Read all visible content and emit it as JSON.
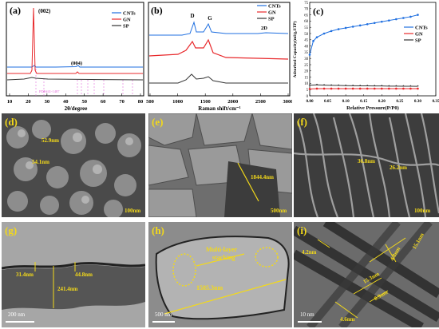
{
  "chart_data": [
    {
      "panel": "(a)",
      "type": "line",
      "xlabel": "2θ/degree",
      "ylabel": "",
      "xlim": [
        10,
        80
      ],
      "xticks": [
        10,
        20,
        30,
        40,
        50,
        60,
        70,
        80
      ],
      "legend_placement": "top-right",
      "series": [
        {
          "name": "CNTs",
          "color": "#1f6fe0"
        },
        {
          "name": "GN",
          "color": "#e8292c"
        },
        {
          "name": "SP",
          "color": "#333333"
        }
      ],
      "annotations": [
        "(002)",
        "(004)",
        "PDF#41-1487"
      ]
    },
    {
      "panel": "(b)",
      "type": "line",
      "xlabel": "Raman shift/cm⁻¹",
      "xlim": [
        500,
        3000
      ],
      "xticks": [
        500,
        1000,
        1500,
        2000,
        2500,
        3000
      ],
      "legend_placement": "top-right",
      "series": [
        {
          "name": "CNTs",
          "color": "#1f6fe0"
        },
        {
          "name": "GN",
          "color": "#e8292c"
        },
        {
          "name": "SP",
          "color": "#333333"
        }
      ],
      "annotations": [
        "D",
        "G",
        "2D"
      ]
    },
    {
      "panel": "(c)",
      "type": "line",
      "xlabel": "Relative Pressure(P/P0)",
      "ylabel": "Adsorbed Capacity(ml/g,STP)",
      "xlim": [
        0.0,
        0.35
      ],
      "ylim": [
        0,
        75
      ],
      "xticks": [
        "0.00",
        "0.05",
        "0.10",
        "0.15",
        "0.20",
        "0.25",
        "0.30",
        "0.35"
      ],
      "yticks": [
        0,
        5,
        10,
        15,
        20,
        25,
        30,
        35,
        40,
        45,
        50,
        55,
        60,
        65,
        70,
        75
      ],
      "legend_placement": "top-right",
      "series": [
        {
          "name": "CNTs",
          "color": "#1f6fe0",
          "x": [
            0.0,
            0.01,
            0.02,
            0.04,
            0.06,
            0.08,
            0.1,
            0.12,
            0.14,
            0.16,
            0.18,
            0.2,
            0.22,
            0.24,
            0.26,
            0.28,
            0.3
          ],
          "y": [
            33,
            44,
            47,
            50,
            52,
            53.5,
            54.5,
            55.5,
            56.5,
            57.5,
            58.5,
            59.5,
            60.5,
            61.5,
            62.5,
            63.5,
            65
          ]
        },
        {
          "name": "GN",
          "color": "#e8292c",
          "x": [
            0.0,
            0.02,
            0.04,
            0.06,
            0.08,
            0.1,
            0.12,
            0.14,
            0.16,
            0.18,
            0.2,
            0.22,
            0.24,
            0.26,
            0.28,
            0.3
          ],
          "y": [
            5.5,
            5.8,
            5.8,
            5.8,
            5.8,
            5.8,
            5.8,
            5.8,
            5.8,
            5.8,
            5.8,
            5.8,
            5.8,
            5.8,
            5.8,
            5.8
          ]
        },
        {
          "name": "SP",
          "color": "#333333",
          "x": [
            0.0,
            0.02,
            0.04,
            0.06,
            0.08,
            0.1,
            0.12,
            0.14,
            0.16,
            0.18,
            0.2,
            0.22,
            0.24,
            0.26,
            0.28,
            0.3
          ],
          "y": [
            8.5,
            8.8,
            8.6,
            8.4,
            8.3,
            8.2,
            8.1,
            8.0,
            8.0,
            7.9,
            7.9,
            7.8,
            7.8,
            7.7,
            7.7,
            7.6
          ]
        }
      ]
    }
  ],
  "micrographs": [
    {
      "label": "(d)",
      "annotations": [
        "52.9nm",
        "54.1nm"
      ],
      "scale": "100nm"
    },
    {
      "label": "(e)",
      "annotations": [
        "1844.4nm"
      ],
      "scale": "500nm"
    },
    {
      "label": "(f)",
      "annotations": [
        "36.8nm",
        "26.2nm"
      ],
      "scale": "100nm"
    },
    {
      "label": "(g)",
      "annotations": [
        "31.4nm",
        "44.8nm",
        "241.4nm"
      ],
      "scale": "200 nm"
    },
    {
      "label": "(h)",
      "annotations": [
        "Multi-layer",
        "stacking",
        "1585.3nm"
      ],
      "scale": "500 nm"
    },
    {
      "label": "(i)",
      "annotations": [
        "4.2nm",
        "15.1nm",
        "4.8nm",
        "15.3nm",
        "0.9nm",
        "4.6nm"
      ],
      "scale": "10 nm"
    }
  ]
}
